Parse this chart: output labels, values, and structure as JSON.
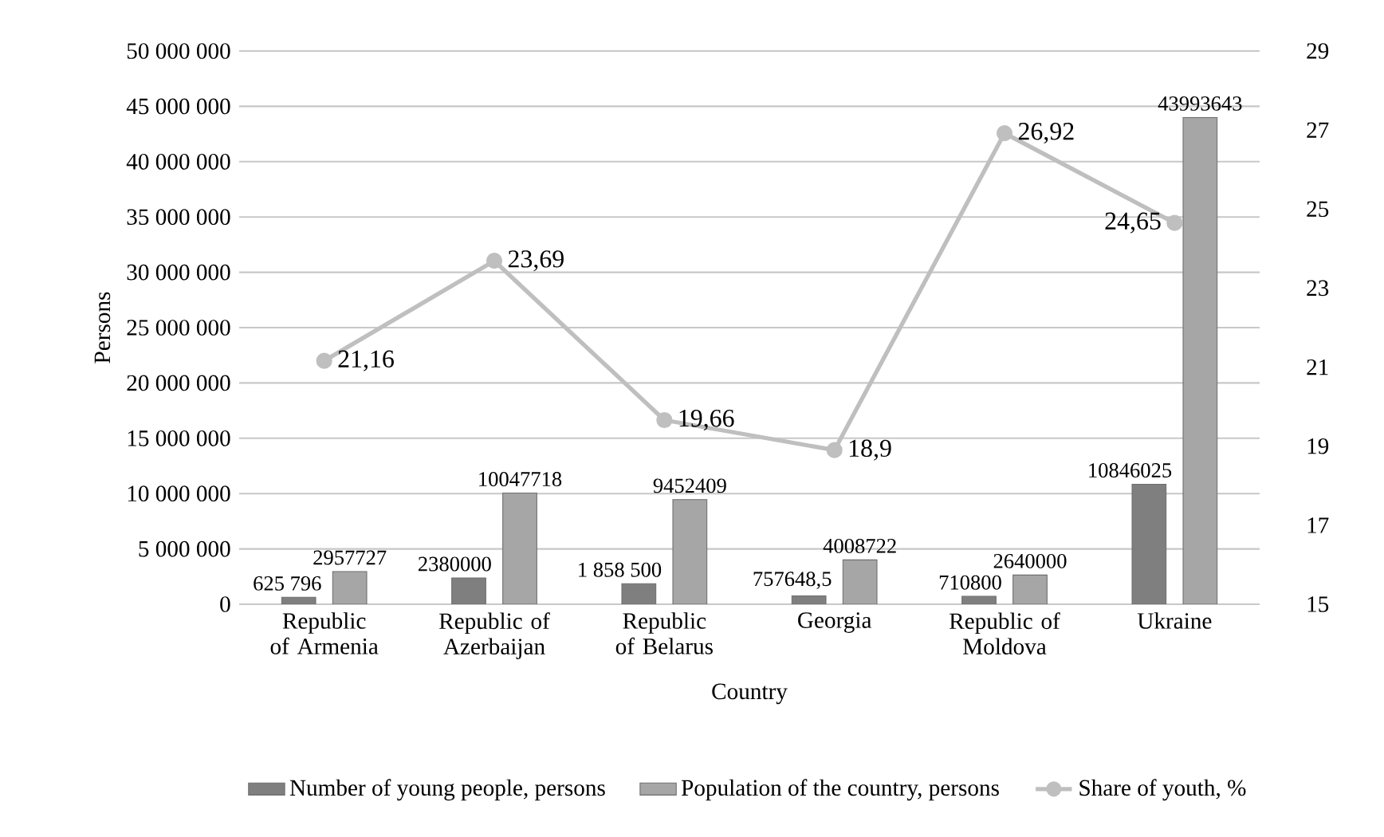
{
  "chart_data": {
    "type": "bar",
    "xlabel": "Country",
    "ylabel": "Persons",
    "categories": [
      "Republic of Armenia",
      "Republic of Azerbaijan",
      "Republic of Belarus",
      "Georgia",
      "Republic of Moldova",
      "Ukraine"
    ],
    "series": [
      {
        "name": "Number of young people, persons",
        "color": "#7f7f7f",
        "values": [
          625796,
          2380000,
          1858500,
          757648.5,
          710800,
          10846025
        ],
        "value_labels": [
          "625 796",
          "2380000",
          "1 858 500",
          "757648,5",
          "710800",
          "10846025"
        ]
      },
      {
        "name": "Population of the country, persons",
        "color": "#a6a6a6",
        "values": [
          2957727,
          10047718,
          9452409,
          4008722,
          2640000,
          43993643
        ],
        "value_labels": [
          "2957727",
          "10047718",
          "9452409",
          "4008722",
          "2640000",
          "43993643"
        ]
      },
      {
        "name": "Share of youth, %",
        "type": "line",
        "axis": "y2",
        "color": "#bfbfbf",
        "marker": "circle",
        "values": [
          21.16,
          23.69,
          19.66,
          18.9,
          26.92,
          24.65
        ],
        "value_labels": [
          "21,16",
          "23,69",
          "19,66",
          "18,9",
          "26,92",
          "24,65"
        ]
      }
    ],
    "ylim": [
      0,
      50000000
    ],
    "yticks": [
      {
        "value": 0,
        "label": "0"
      },
      {
        "value": 5000000,
        "label": "5 000 000"
      },
      {
        "value": 10000000,
        "label": "10 000 000"
      },
      {
        "value": 15000000,
        "label": "15 000 000"
      },
      {
        "value": 20000000,
        "label": "20 000 000"
      },
      {
        "value": 25000000,
        "label": "25 000 000"
      },
      {
        "value": 30000000,
        "label": "30 000 000"
      },
      {
        "value": 35000000,
        "label": "35 000 000"
      },
      {
        "value": 40000000,
        "label": "40 000 000"
      },
      {
        "value": 45000000,
        "label": "45 000 000"
      },
      {
        "value": 50000000,
        "label": "50 000 000"
      }
    ],
    "y2lim": [
      15,
      29
    ],
    "y2ticks": [
      15,
      17,
      19,
      21,
      23,
      25,
      27,
      29
    ],
    "grid": "y",
    "legend": "bottom"
  }
}
